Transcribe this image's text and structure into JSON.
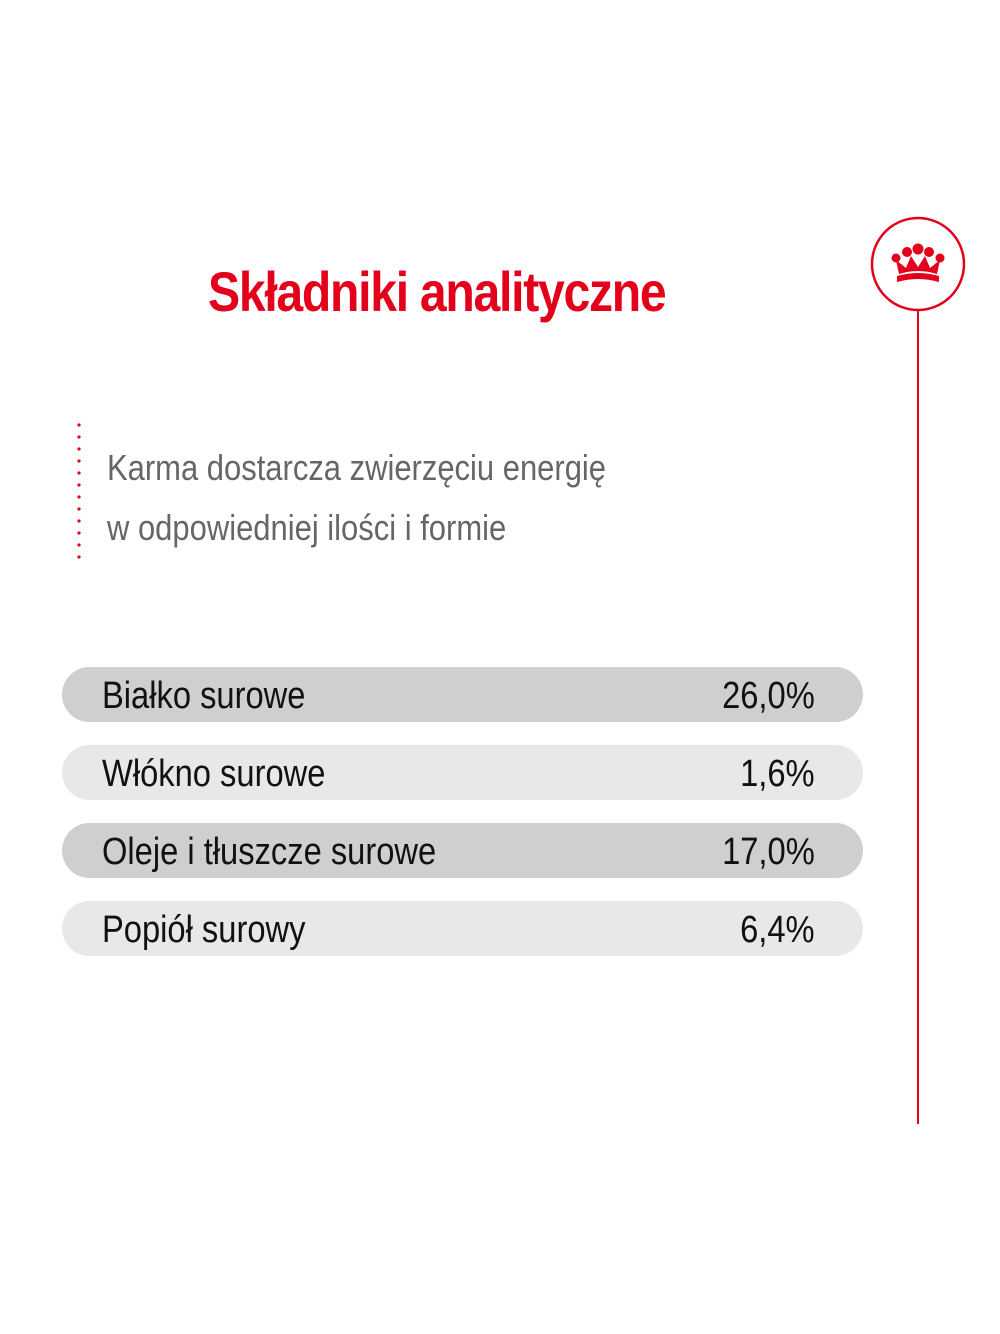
{
  "title": "Składniki analityczne",
  "subtitle": {
    "line1": "Karma dostarcza zwierzęciu energię",
    "line2": "w odpowiedniej ilości i formie"
  },
  "nutrients": [
    {
      "label": "Białko surowe",
      "value": "26,0%"
    },
    {
      "label": "Włókno surowe",
      "value": "1,6%"
    },
    {
      "label": "Oleje i tłuszcze surowe",
      "value": "17,0%"
    },
    {
      "label": "Popiół surowy",
      "value": "6,4%"
    }
  ],
  "colors": {
    "brand_red": "#e2001a",
    "text_gray": "#666666",
    "row_dark": "#cfcfcf",
    "row_light": "#e8e8e8"
  },
  "logo_icon": "crown-icon"
}
